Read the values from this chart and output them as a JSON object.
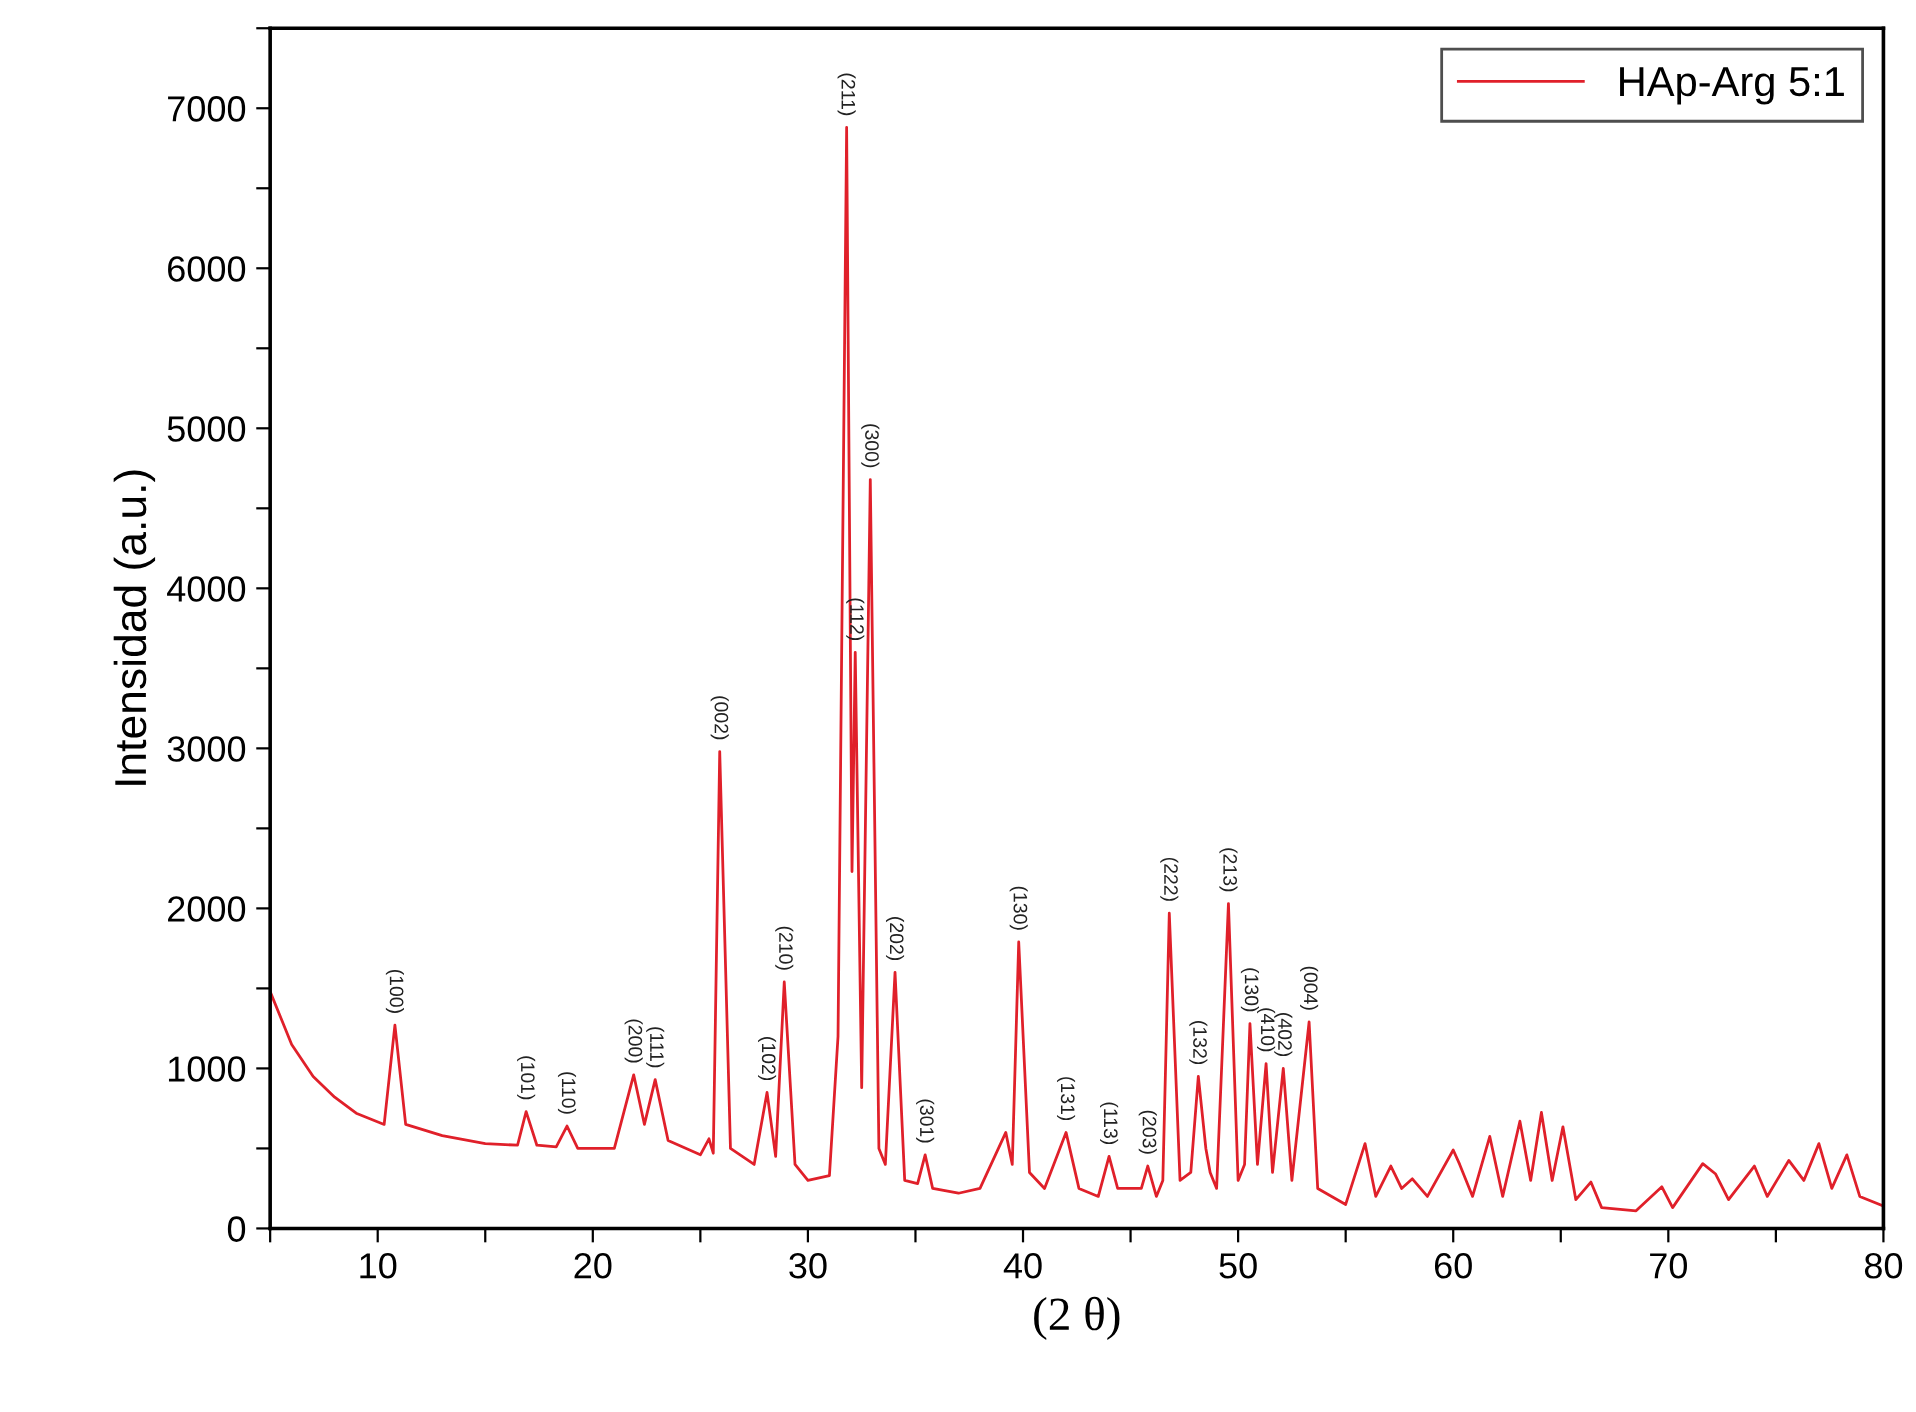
{
  "chart_data": {
    "type": "line",
    "xlabel": "(2 θ)",
    "ylabel": "Intensidad (a.u.)",
    "xlim": [
      5,
      80
    ],
    "ylim": [
      0,
      7500
    ],
    "xticks": [
      {
        "value": 5,
        "label": null
      },
      10,
      {
        "value": 15,
        "label": null
      },
      20,
      {
        "value": 25,
        "label": null
      },
      30,
      {
        "value": 35,
        "label": null
      },
      40,
      {
        "value": 45,
        "label": null
      },
      50,
      {
        "value": 55,
        "label": null
      },
      60,
      {
        "value": 65,
        "label": null
      },
      70,
      {
        "value": 75,
        "label": null
      },
      80
    ],
    "yticks": [
      0,
      {
        "value": 500,
        "label": null
      },
      1000,
      {
        "value": 1500,
        "label": null
      },
      2000,
      {
        "value": 2500,
        "label": null
      },
      3000,
      {
        "value": 3500,
        "label": null
      },
      4000,
      {
        "value": 4500,
        "label": null
      },
      5000,
      {
        "value": 5500,
        "label": null
      },
      6000,
      {
        "value": 6500,
        "label": null
      },
      7000,
      {
        "value": 7500,
        "label": null
      }
    ],
    "grid": false,
    "legend": "top right",
    "marker": "none",
    "line_style": "solid",
    "series": [
      {
        "name": "HAp-Arg 5:1",
        "color": "#e0202a",
        "x": [
          5,
          6,
          7,
          8,
          9,
          10.3,
          10.8,
          11.3,
          13,
          15,
          16.5,
          16.9,
          17.4,
          18.3,
          18.8,
          19.3,
          21,
          21.9,
          22.4,
          22.9,
          23.5,
          25,
          25.4,
          25.6,
          25.9,
          26.4,
          27.5,
          28.1,
          28.5,
          28.9,
          29.4,
          30,
          31,
          31.4,
          31.8,
          32.05,
          32.2,
          32.5,
          32.9,
          33.3,
          33.6,
          34.05,
          34.5,
          35.1,
          35.45,
          35.8,
          37,
          38,
          39.2,
          39.5,
          39.8,
          40.3,
          41,
          42.0,
          42.6,
          43.5,
          44.0,
          44.4,
          45.5,
          45.8,
          46.2,
          46.5,
          46.8,
          47.3,
          47.8,
          48.15,
          48.5,
          48.7,
          49.0,
          49.55,
          50.0,
          50.3,
          50.55,
          50.9,
          51.3,
          51.6,
          52.1,
          52.5,
          53.3,
          53.7,
          55,
          55.9,
          56.4,
          57.1,
          57.6,
          58.1,
          58.8,
          60.0,
          60.3,
          60.9,
          61.7,
          62.3,
          63.1,
          63.6,
          64.1,
          64.6,
          65.1,
          65.7,
          66.4,
          66.9,
          68.5,
          69.7,
          70.2,
          71.6,
          72.2,
          72.8,
          74.0,
          74.6,
          75.6,
          76.3,
          77.0,
          77.6,
          78.3,
          78.9,
          80
        ],
        "values": [
          1480,
          1150,
          950,
          820,
          720,
          650,
          1270,
          650,
          580,
          530,
          520,
          730,
          520,
          510,
          640,
          500,
          500,
          960,
          650,
          930,
          550,
          460,
          560,
          470,
          2980,
          500,
          400,
          850,
          450,
          1540,
          400,
          300,
          330,
          1200,
          6880,
          2230,
          3600,
          880,
          4680,
          500,
          400,
          1600,
          300,
          280,
          460,
          250,
          220,
          250,
          600,
          400,
          1790,
          350,
          250,
          600,
          250,
          200,
          450,
          250,
          250,
          390,
          200,
          300,
          1970,
          300,
          350,
          950,
          500,
          350,
          250,
          2030,
          300,
          400,
          1280,
          400,
          1030,
          350,
          1000,
          300,
          1290,
          250,
          150,
          530,
          200,
          390,
          250,
          310,
          200,
          490,
          400,
          200,
          575,
          200,
          670,
          300,
          725,
          300,
          635,
          180,
          290,
          130,
          110,
          260,
          130,
          405,
          340,
          180,
          390,
          200,
          425,
          300,
          530,
          250,
          460,
          200,
          140
        ]
      }
    ],
    "annotations": [
      {
        "text": "(100)",
        "x": 10.8,
        "y": 1270
      },
      {
        "text": "(101)",
        "x": 16.9,
        "y": 730
      },
      {
        "text": "(110)",
        "x": 18.8,
        "y": 640
      },
      {
        "text": "(200)",
        "x": 21.9,
        "y": 960
      },
      {
        "text": "(111)",
        "x": 22.9,
        "y": 930
      },
      {
        "text": "(002)",
        "x": 25.9,
        "y": 2980
      },
      {
        "text": "(102)",
        "x": 28.1,
        "y": 850
      },
      {
        "text": "(210)",
        "x": 28.9,
        "y": 1540
      },
      {
        "text": "(211)",
        "x": 31.8,
        "y": 6880
      },
      {
        "text": "(112)",
        "x": 32.2,
        "y": 3600
      },
      {
        "text": "(300)",
        "x": 32.9,
        "y": 4680
      },
      {
        "text": "(202)",
        "x": 34.05,
        "y": 1600
      },
      {
        "text": "(301)",
        "x": 35.45,
        "y": 460
      },
      {
        "text": "(130)",
        "x": 39.8,
        "y": 1790
      },
      {
        "text": "(131)",
        "x": 42.0,
        "y": 600
      },
      {
        "text": "(113)",
        "x": 44.0,
        "y": 450
      },
      {
        "text": "(203)",
        "x": 45.8,
        "y": 390
      },
      {
        "text": "(222)",
        "x": 46.8,
        "y": 1970
      },
      {
        "text": "(132)",
        "x": 48.15,
        "y": 950
      },
      {
        "text": "(213)",
        "x": 49.55,
        "y": 2030
      },
      {
        "text": "(130)",
        "x": 50.55,
        "y": 1280
      },
      {
        "text": "(410)",
        "x": 51.3,
        "y": 1030
      },
      {
        "text": "(402)",
        "x": 52.1,
        "y": 1000
      },
      {
        "text": "(004)",
        "x": 53.3,
        "y": 1290
      }
    ]
  }
}
